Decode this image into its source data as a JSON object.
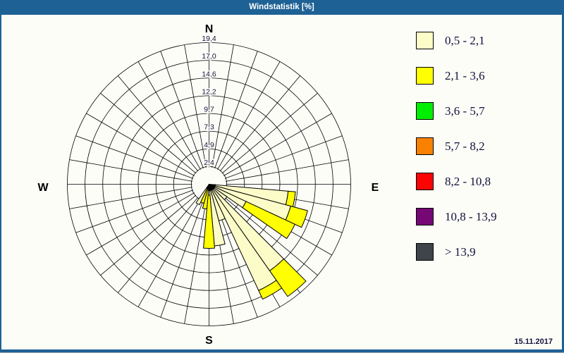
{
  "window": {
    "title": "Windstatistik [%]",
    "date": "15.11.2017",
    "titlebar_color": "#1e6195",
    "background_color": "#fdfdf8"
  },
  "chart_data": {
    "type": "windrose",
    "title": "Windstatistik [%]",
    "unit": "percent frequency",
    "grid": true,
    "legend_position": "right",
    "sector_width_deg": 10,
    "spoke_step_deg": 10,
    "r_max": 19.44,
    "ring_values": [
      2.43,
      4.86,
      7.29,
      9.72,
      12.15,
      14.58,
      17.01,
      19.44
    ],
    "ring_labels": [
      "2,4",
      "4,9",
      "7,3",
      "9,7",
      "12,2",
      "14,6",
      "17,0",
      "19,4"
    ],
    "compass": {
      "north": "N",
      "east": "E",
      "south": "S",
      "west": "W"
    },
    "speed_classes": [
      {
        "label": "0,5 - 2,1",
        "color": "#fcfcc8"
      },
      {
        "label": "2,1 - 3,6",
        "color": "#ffff00"
      },
      {
        "label": "3,6 - 5,7",
        "color": "#00ee00"
      },
      {
        "label": "5,7 - 8,2",
        "color": "#f88200"
      },
      {
        "label": "8,2 - 10,8",
        "color": "#fb0404"
      },
      {
        "label": "10,8 - 13,9",
        "color": "#750875"
      },
      {
        "label": "> 13,9",
        "color": "#3f444a"
      }
    ],
    "directions": [
      {
        "angle_deg": 100,
        "frequencies_pct": [
          10.9,
          1.0,
          0,
          0,
          0,
          0,
          0
        ]
      },
      {
        "angle_deg": 110,
        "frequencies_pct": [
          11.6,
          2.4,
          0,
          0,
          0,
          0,
          0
        ]
      },
      {
        "angle_deg": 120,
        "frequencies_pct": [
          5.6,
          7.4,
          0,
          0,
          0,
          0,
          0
        ]
      },
      {
        "angle_deg": 130,
        "frequencies_pct": [
          3.0,
          0,
          0,
          0,
          0,
          0,
          0
        ]
      },
      {
        "angle_deg": 140,
        "frequencies_pct": [
          14.5,
          4.3,
          0,
          0,
          0,
          0,
          0
        ]
      },
      {
        "angle_deg": 150,
        "frequencies_pct": [
          16.1,
          1.3,
          0,
          0,
          0,
          0,
          0
        ]
      },
      {
        "angle_deg": 160,
        "frequencies_pct": [
          5.2,
          0,
          0,
          0,
          0,
          0,
          0
        ]
      },
      {
        "angle_deg": 170,
        "frequencies_pct": [
          8.5,
          0,
          0,
          0,
          0,
          0,
          0
        ]
      },
      {
        "angle_deg": 180,
        "frequencies_pct": [
          1.5,
          7.3,
          0,
          0,
          0,
          0,
          0
        ]
      },
      {
        "angle_deg": 190,
        "frequencies_pct": [
          0.8,
          2.6,
          0,
          0,
          0,
          0,
          0
        ]
      },
      {
        "angle_deg": 200,
        "frequencies_pct": [
          0.6,
          2.1,
          0,
          0,
          0,
          0,
          0
        ]
      },
      {
        "angle_deg": 210,
        "frequencies_pct": [
          3.1,
          0,
          0,
          0,
          0,
          0,
          0
        ]
      }
    ]
  }
}
